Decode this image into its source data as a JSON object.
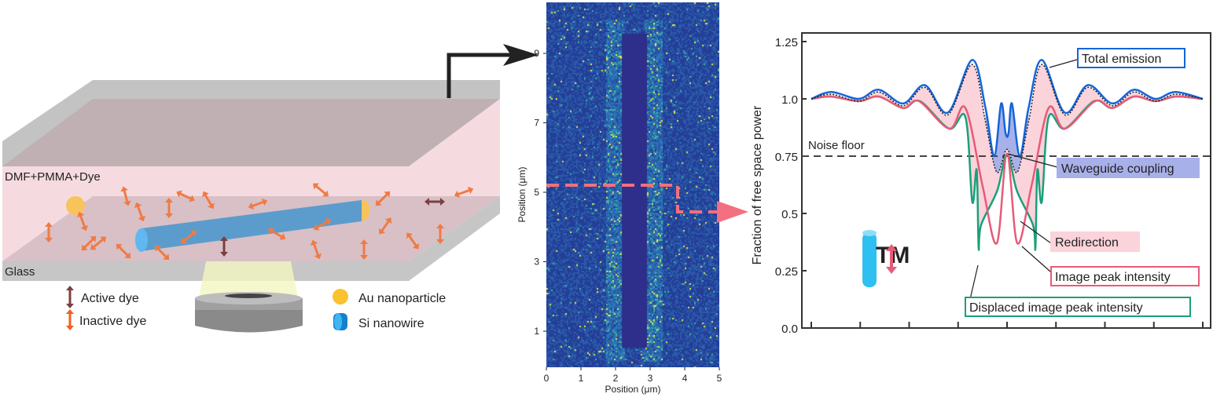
{
  "schematic": {
    "medium_label": "DMF+PMMA+Dye",
    "substrate_label": "Glass",
    "legend": [
      {
        "label": "Active dye",
        "color": "#7a4040",
        "icon": "double-arrow-icon"
      },
      {
        "label": "Inactive dye",
        "color": "#f07030",
        "icon": "double-arrow-icon"
      },
      {
        "label": "Au nanoparticle",
        "color": "#f9c22e",
        "icon": "circle-icon"
      },
      {
        "label": "Si nanowire",
        "color": "#1e90d8",
        "icon": "cylinder-icon"
      }
    ]
  },
  "image_panel": {
    "xlabel": "Position (μm)",
    "ylabel": "Position (μm)",
    "xticks": [
      "0",
      "1",
      "2",
      "3",
      "4",
      "5"
    ],
    "yticks": [
      "1",
      "3",
      "5",
      "7",
      "9"
    ]
  },
  "chart_data": {
    "type": "line",
    "ylabel": "Fraction of free space power",
    "yticks": [
      "0.0",
      "0.25",
      "0.5",
      "0.75",
      "1.0",
      "1.25"
    ],
    "ylim": [
      0,
      1.25
    ],
    "xlim": [
      0,
      8
    ],
    "x_tick_count": 9,
    "noise_floor": {
      "value": 0.75,
      "label": "Noise floor"
    },
    "polarization_label": "TM",
    "series": [
      {
        "name": "Total emission",
        "color": "#1565d8",
        "points": [
          [
            0,
            1.0
          ],
          [
            0.41,
            1.03
          ],
          [
            0.97,
            1.0
          ],
          [
            1.38,
            1.04
          ],
          [
            1.88,
            0.98
          ],
          [
            2.32,
            1.06
          ],
          [
            2.79,
            0.94
          ],
          [
            3.29,
            1.17
          ],
          [
            3.56,
            0.96
          ],
          [
            3.74,
            0.75
          ],
          [
            3.88,
            0.98
          ],
          [
            3.97,
            0.85
          ],
          [
            4.03,
            0.85
          ],
          [
            4.1,
            0.98
          ],
          [
            4.26,
            0.75
          ],
          [
            4.44,
            0.96
          ],
          [
            4.71,
            1.17
          ],
          [
            5.18,
            0.94
          ],
          [
            5.65,
            1.06
          ],
          [
            6.15,
            0.98
          ],
          [
            6.59,
            1.04
          ],
          [
            7.03,
            1.0
          ],
          [
            7.44,
            1.03
          ],
          [
            8,
            1.0
          ]
        ]
      },
      {
        "name": "Image peak intensity",
        "color": "#e85a78",
        "points": [
          [
            0,
            1.0
          ],
          [
            0.41,
            1.01
          ],
          [
            0.97,
            0.99
          ],
          [
            1.38,
            1.01
          ],
          [
            1.88,
            0.96
          ],
          [
            2.2,
            0.99
          ],
          [
            2.82,
            0.87
          ],
          [
            3.15,
            0.96
          ],
          [
            3.5,
            0.62
          ],
          [
            3.79,
            0.37
          ],
          [
            4.0,
            0.76
          ],
          [
            4.21,
            0.37
          ],
          [
            4.5,
            0.62
          ],
          [
            4.85,
            0.96
          ],
          [
            5.18,
            0.87
          ],
          [
            5.8,
            0.99
          ],
          [
            6.15,
            0.96
          ],
          [
            6.59,
            1.01
          ],
          [
            7.03,
            0.99
          ],
          [
            7.44,
            1.01
          ],
          [
            8,
            1.0
          ]
        ]
      },
      {
        "name": "Displaced image peak intensity",
        "color": "#1aa07a",
        "points": [
          [
            0,
            1.0
          ],
          [
            0.41,
            1.01
          ],
          [
            0.97,
            0.99
          ],
          [
            1.38,
            1.01
          ],
          [
            1.88,
            0.96
          ],
          [
            2.22,
            0.99
          ],
          [
            2.82,
            0.87
          ],
          [
            3.15,
            0.92
          ],
          [
            3.29,
            0.55
          ],
          [
            3.38,
            0.69
          ],
          [
            3.42,
            0.35
          ],
          [
            3.47,
            0.45
          ],
          [
            3.8,
            0.6
          ],
          [
            4.0,
            0.76
          ],
          [
            4.2,
            0.6
          ],
          [
            4.53,
            0.45
          ],
          [
            4.58,
            0.35
          ],
          [
            4.62,
            0.69
          ],
          [
            4.71,
            0.55
          ],
          [
            4.85,
            0.92
          ],
          [
            5.18,
            0.87
          ],
          [
            5.78,
            0.99
          ],
          [
            6.15,
            0.96
          ],
          [
            6.59,
            1.01
          ],
          [
            7.03,
            0.99
          ],
          [
            7.44,
            1.01
          ],
          [
            8,
            1.0
          ]
        ]
      },
      {
        "name": "Waveguide coupling",
        "color": "#222222",
        "dotted": true,
        "points": [
          [
            0,
            1.0
          ],
          [
            0.41,
            1.02
          ],
          [
            0.97,
            0.99
          ],
          [
            1.38,
            1.03
          ],
          [
            1.88,
            0.97
          ],
          [
            2.32,
            1.05
          ],
          [
            2.79,
            0.93
          ],
          [
            3.29,
            1.15
          ],
          [
            3.56,
            0.9
          ],
          [
            3.79,
            0.68
          ],
          [
            4.0,
            0.78
          ],
          [
            4.21,
            0.68
          ],
          [
            4.44,
            0.9
          ],
          [
            4.71,
            1.15
          ],
          [
            5.18,
            0.93
          ],
          [
            5.65,
            1.05
          ],
          [
            6.15,
            0.97
          ],
          [
            6.59,
            1.03
          ],
          [
            7.03,
            0.99
          ],
          [
            7.44,
            1.02
          ],
          [
            8,
            1.0
          ]
        ]
      }
    ],
    "annotations": [
      {
        "label": "Total emission",
        "border": "#1565d8",
        "fill": "#ffffff"
      },
      {
        "label": "Waveguide coupling",
        "border": "#a8b0ea",
        "fill": "#a8b0ea"
      },
      {
        "label": "Redirection",
        "border": "#fbd3da",
        "fill": "#fbd3da"
      },
      {
        "label": "Image peak intensity",
        "border": "#e85a78",
        "fill": "#ffffff"
      },
      {
        "label": "Displaced image peak intensity",
        "border": "#1aa07a",
        "fill": "#ffffff"
      }
    ]
  }
}
